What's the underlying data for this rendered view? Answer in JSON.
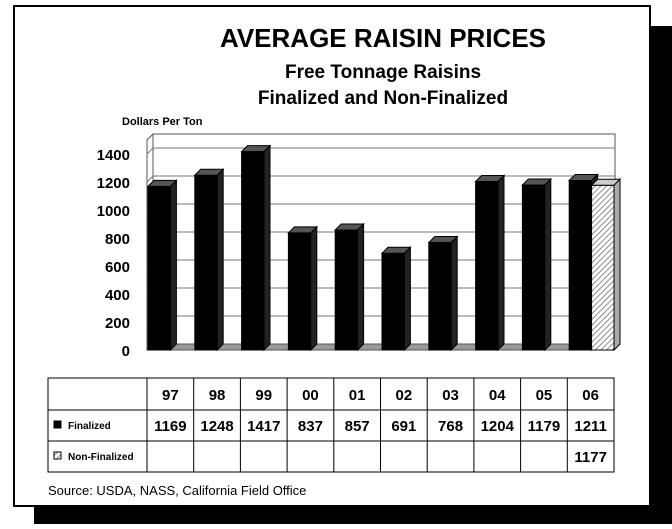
{
  "chart_data": {
    "type": "bar",
    "title": "AVERAGE RAISIN PRICES",
    "subtitle": [
      "Free Tonnage Raisins",
      "Finalized and Non-Finalized"
    ],
    "y_label": "Dollars Per Ton",
    "categories": [
      "97",
      "98",
      "99",
      "00",
      "01",
      "02",
      "03",
      "04",
      "05",
      "06"
    ],
    "series": [
      {
        "name": "Finalized",
        "color": "#000000",
        "values": [
          1169,
          1248,
          1417,
          837,
          857,
          691,
          768,
          1204,
          1179,
          1211
        ]
      },
      {
        "name": "Non-Finalized",
        "color": "hatched",
        "values": [
          null,
          null,
          null,
          null,
          null,
          null,
          null,
          null,
          null,
          1177
        ]
      }
    ],
    "ylim": [
      0,
      1500
    ],
    "yticks": [
      0,
      200,
      400,
      600,
      800,
      1000,
      1200,
      1400
    ],
    "grid": true,
    "source": "Source: USDA, NASS, California Field Office"
  }
}
